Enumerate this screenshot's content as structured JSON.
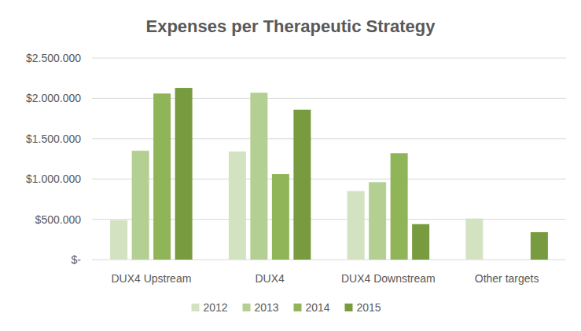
{
  "chart_data": {
    "type": "bar",
    "title": "Expenses per Therapeutic Strategy",
    "categories": [
      "DUX4 Upstream",
      "DUX4",
      "DUX4 Downstream",
      "Other targets"
    ],
    "series": [
      {
        "name": "2012",
        "color": "#d3e3c1",
        "values": [
          490000,
          1340000,
          850000,
          510000
        ]
      },
      {
        "name": "2013",
        "color": "#b3cf91",
        "values": [
          1350000,
          2070000,
          960000,
          0
        ]
      },
      {
        "name": "2014",
        "color": "#90b558",
        "values": [
          2060000,
          1060000,
          1320000,
          0
        ]
      },
      {
        "name": "2015",
        "color": "#789b40",
        "values": [
          2130000,
          1860000,
          440000,
          340000
        ]
      }
    ],
    "ylim": [
      0,
      2500000
    ],
    "yticks": [
      {
        "value": 0,
        "label": "$-"
      },
      {
        "value": 500000,
        "label": "$500.000"
      },
      {
        "value": 1000000,
        "label": "$1.000.000"
      },
      {
        "value": 1500000,
        "label": "$1.500.000"
      },
      {
        "value": 2000000,
        "label": "$2.000.000"
      },
      {
        "value": 2500000,
        "label": "$2.500.000"
      }
    ],
    "grid": true,
    "legend": "bottom"
  }
}
